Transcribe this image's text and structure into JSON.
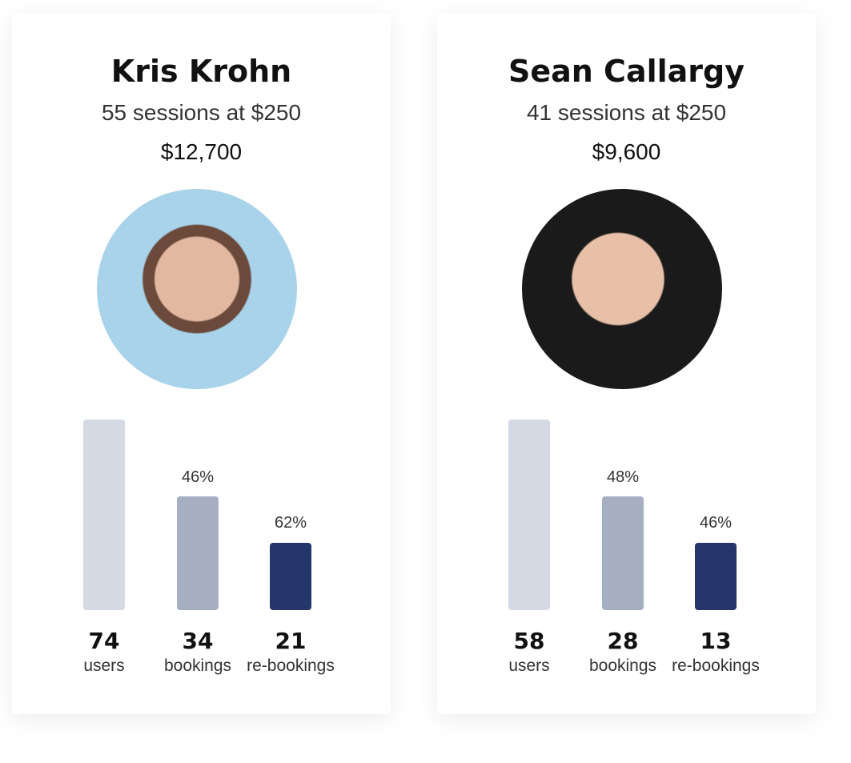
{
  "cards": [
    {
      "name": "Kris Krohn",
      "sessions": "55 sessions at $250",
      "total": "$12,700",
      "stats": [
        {
          "value": 74,
          "label": "users",
          "percent": null
        },
        {
          "value": 34,
          "label": "bookings",
          "percent": "46%"
        },
        {
          "value": 21,
          "label": "re-bookings",
          "percent": "62%"
        }
      ]
    },
    {
      "name": "Sean Callargy",
      "sessions": "41 sessions at $250",
      "total": "$9,600",
      "stats": [
        {
          "value": 58,
          "label": "users",
          "percent": null
        },
        {
          "value": 28,
          "label": "bookings",
          "percent": "48%"
        },
        {
          "value": 13,
          "label": "re-bookings",
          "percent": "46%"
        }
      ]
    }
  ]
}
